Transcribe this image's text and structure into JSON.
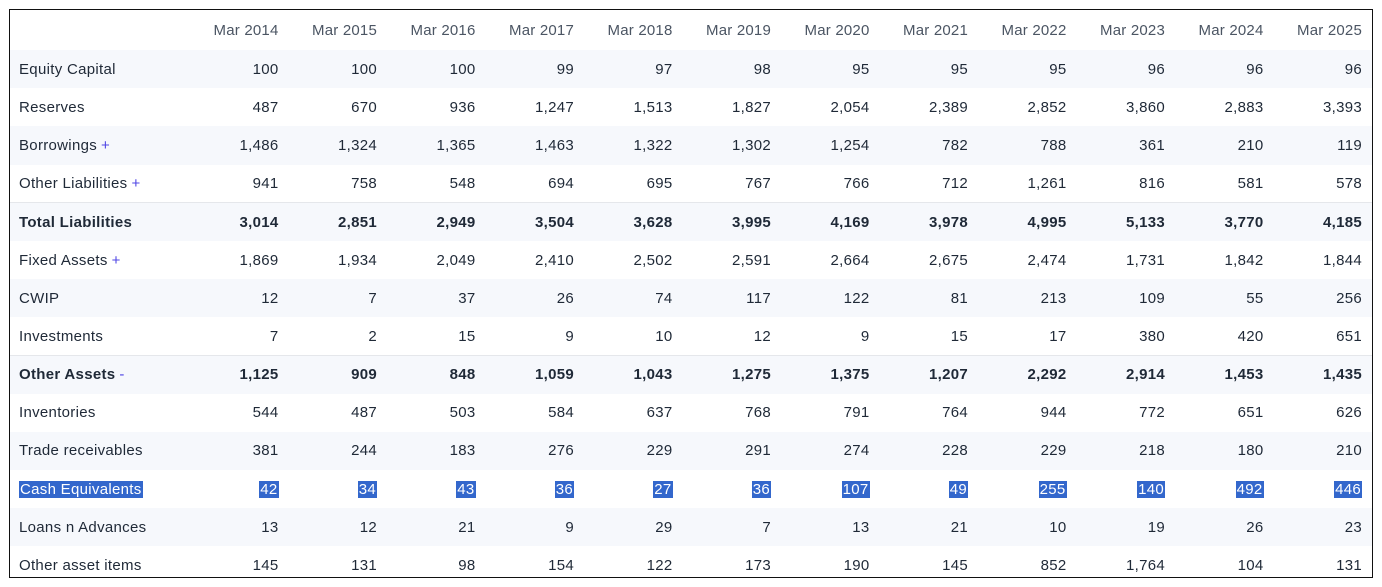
{
  "columns": [
    "Mar 2014",
    "Mar 2015",
    "Mar 2016",
    "Mar 2017",
    "Mar 2018",
    "Mar 2019",
    "Mar 2020",
    "Mar 2021",
    "Mar 2022",
    "Mar 2023",
    "Mar 2024",
    "Mar 2025"
  ],
  "rows": [
    {
      "label": "Equity Capital",
      "toggle": "",
      "bold": false,
      "values": [
        "100",
        "100",
        "100",
        "99",
        "97",
        "98",
        "95",
        "95",
        "95",
        "96",
        "96",
        "96"
      ]
    },
    {
      "label": "Reserves",
      "toggle": "",
      "bold": false,
      "values": [
        "487",
        "670",
        "936",
        "1,247",
        "1,513",
        "1,827",
        "2,054",
        "2,389",
        "2,852",
        "3,860",
        "2,883",
        "3,393"
      ]
    },
    {
      "label": "Borrowings",
      "toggle": "+",
      "bold": false,
      "values": [
        "1,486",
        "1,324",
        "1,365",
        "1,463",
        "1,322",
        "1,302",
        "1,254",
        "782",
        "788",
        "361",
        "210",
        "119"
      ]
    },
    {
      "label": "Other Liabilities",
      "toggle": "+",
      "bold": false,
      "values": [
        "941",
        "758",
        "548",
        "694",
        "695",
        "767",
        "766",
        "712",
        "1,261",
        "816",
        "581",
        "578"
      ]
    },
    {
      "label": "Total Liabilities",
      "toggle": "",
      "bold": true,
      "values": [
        "3,014",
        "2,851",
        "2,949",
        "3,504",
        "3,628",
        "3,995",
        "4,169",
        "3,978",
        "4,995",
        "5,133",
        "3,770",
        "4,185"
      ]
    },
    {
      "label": "Fixed Assets",
      "toggle": "+",
      "bold": false,
      "values": [
        "1,869",
        "1,934",
        "2,049",
        "2,410",
        "2,502",
        "2,591",
        "2,664",
        "2,675",
        "2,474",
        "1,731",
        "1,842",
        "1,844"
      ]
    },
    {
      "label": "CWIP",
      "toggle": "",
      "bold": false,
      "values": [
        "12",
        "7",
        "37",
        "26",
        "74",
        "117",
        "122",
        "81",
        "213",
        "109",
        "55",
        "256"
      ]
    },
    {
      "label": "Investments",
      "toggle": "",
      "bold": false,
      "values": [
        "7",
        "2",
        "15",
        "9",
        "10",
        "12",
        "9",
        "15",
        "17",
        "380",
        "420",
        "651"
      ]
    },
    {
      "label": "Other Assets",
      "toggle": "-",
      "bold": true,
      "values": [
        "1,125",
        "909",
        "848",
        "1,059",
        "1,043",
        "1,275",
        "1,375",
        "1,207",
        "2,292",
        "2,914",
        "1,453",
        "1,435"
      ]
    },
    {
      "label": "Inventories",
      "toggle": "",
      "bold": false,
      "values": [
        "544",
        "487",
        "503",
        "584",
        "637",
        "768",
        "791",
        "764",
        "944",
        "772",
        "651",
        "626"
      ]
    },
    {
      "label": "Trade receivables",
      "toggle": "",
      "bold": false,
      "values": [
        "381",
        "244",
        "183",
        "276",
        "229",
        "291",
        "274",
        "228",
        "229",
        "218",
        "180",
        "210"
      ]
    },
    {
      "label": "Cash Equivalents",
      "toggle": "",
      "bold": false,
      "highlighted": true,
      "values": [
        "42",
        "34",
        "43",
        "36",
        "27",
        "36",
        "107",
        "49",
        "255",
        "140",
        "492",
        "446"
      ]
    },
    {
      "label": "Loans n Advances",
      "toggle": "",
      "bold": false,
      "values": [
        "13",
        "12",
        "21",
        "9",
        "29",
        "7",
        "13",
        "21",
        "10",
        "19",
        "26",
        "23"
      ]
    },
    {
      "label": "Other asset items",
      "toggle": "",
      "bold": false,
      "values": [
        "145",
        "131",
        "98",
        "154",
        "122",
        "173",
        "190",
        "145",
        "852",
        "1,764",
        "104",
        "131"
      ]
    }
  ],
  "colors": {
    "highlight": "#3367cc",
    "toggle": "#4f46e5",
    "shade": "#f6f8fc"
  }
}
